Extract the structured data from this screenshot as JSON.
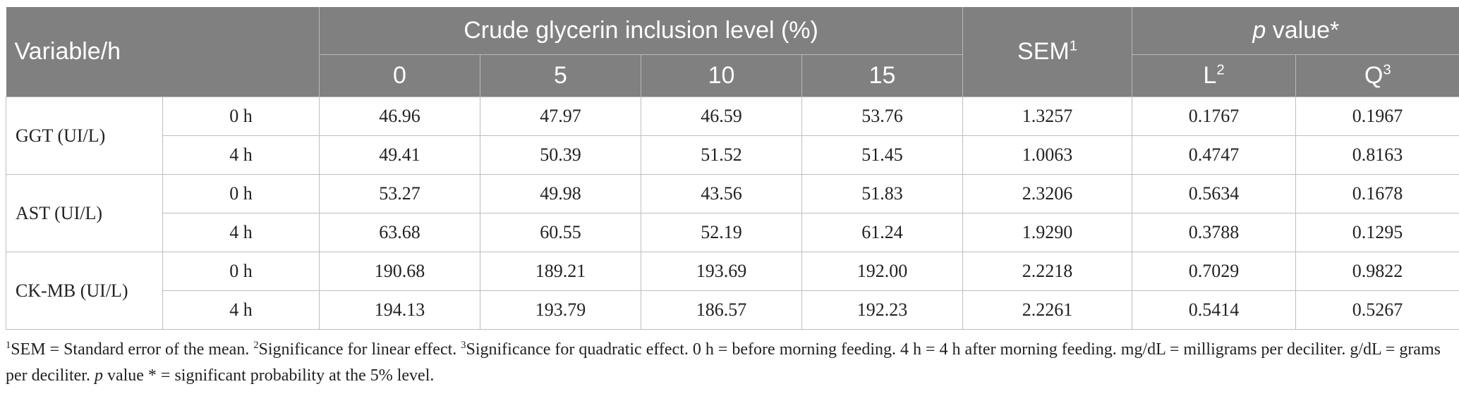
{
  "header": {
    "variable": "Variable/h",
    "group_title": "Crude glycerin inclusion level (%)",
    "levels": [
      "0",
      "5",
      "10",
      "15"
    ],
    "sem": "SEM",
    "sem_sup": "1",
    "pvalue_italic": "p",
    "pvalue_rest": " value*",
    "l": "L",
    "l_sup": "2",
    "q": "Q",
    "q_sup": "3"
  },
  "rows": [
    {
      "variable": "GGT (UI/L)",
      "sub": [
        {
          "time": "0 h",
          "values": [
            "46.96",
            "47.97",
            "46.59",
            "53.76"
          ],
          "sem": "1.3257",
          "l": "0.1767",
          "q": "0.1967"
        },
        {
          "time": "4 h",
          "values": [
            "49.41",
            "50.39",
            "51.52",
            "51.45"
          ],
          "sem": "1.0063",
          "l": "0.4747",
          "q": "0.8163"
        }
      ]
    },
    {
      "variable": "AST (UI/L)",
      "sub": [
        {
          "time": "0 h",
          "values": [
            "53.27",
            "49.98",
            "43.56",
            "51.83"
          ],
          "sem": "2.3206",
          "l": "0.5634",
          "q": "0.1678"
        },
        {
          "time": "4 h",
          "values": [
            "63.68",
            "60.55",
            "52.19",
            "61.24"
          ],
          "sem": "1.9290",
          "l": "0.3788",
          "q": "0.1295"
        }
      ]
    },
    {
      "variable": "CK-MB (UI/L)",
      "sub": [
        {
          "time": "0 h",
          "values": [
            "190.68",
            "189.21",
            "193.69",
            "192.00"
          ],
          "sem": "2.2218",
          "l": "0.7029",
          "q": "0.9822"
        },
        {
          "time": "4 h",
          "values": [
            "194.13",
            "193.79",
            "186.57",
            "192.23"
          ],
          "sem": "2.2261",
          "l": "0.5414",
          "q": "0.5267"
        }
      ]
    }
  ],
  "footnote": {
    "sup1": "1",
    "t1": "SEM = Standard error of the mean. ",
    "sup2": "2",
    "t2": "Significance for linear effect. ",
    "sup3": "3",
    "t3": "Significance for quadratic effect. 0 h = before morning feeding. 4 h = 4 h after morning feeding. mg/dL = milligrams per deciliter. g/dL = grams per deciliter. ",
    "p_italic": "p",
    "t4": " value * = significant probability at the 5% level."
  }
}
